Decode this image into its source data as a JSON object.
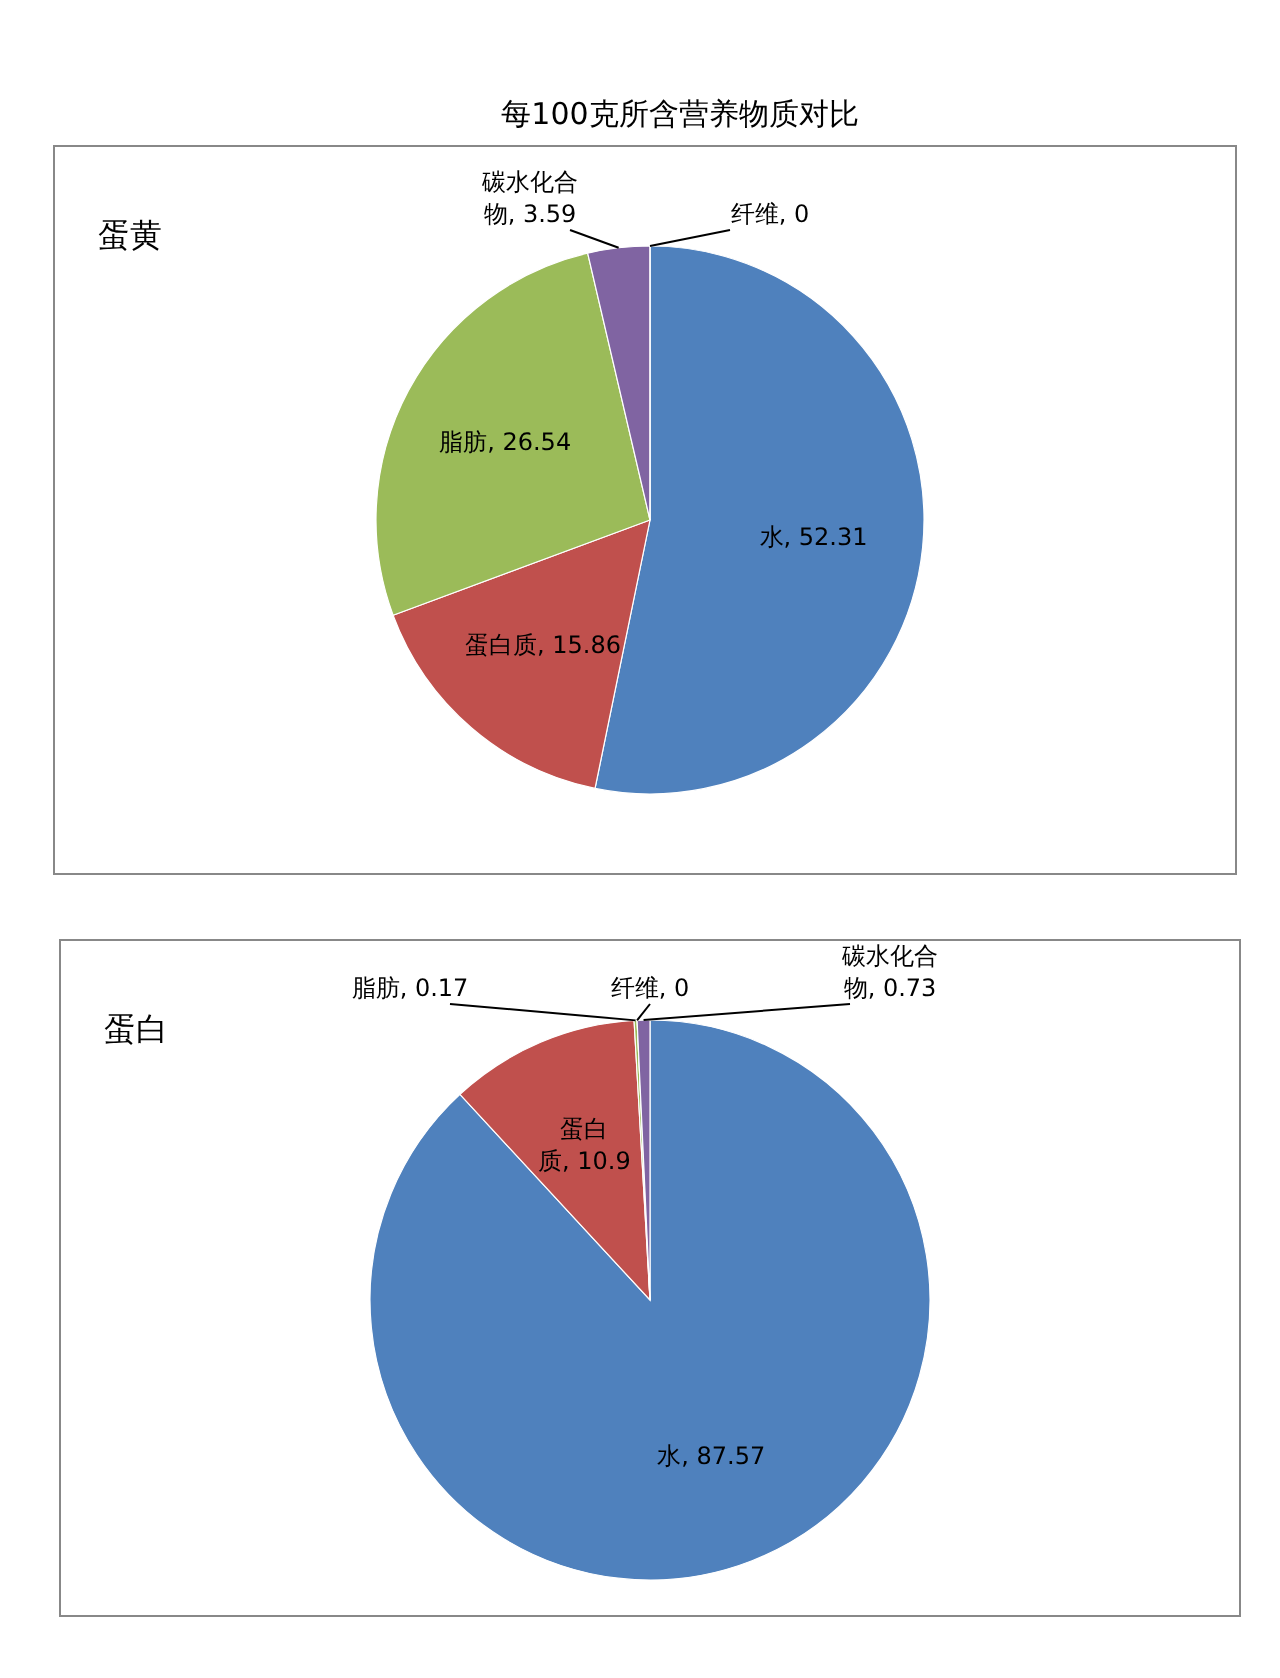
{
  "chart_data": [
    {
      "type": "pie",
      "title": "每100克所含营养物质对比",
      "subtitle": "蛋黄",
      "categories": [
        null,
        null,
        null,
        null,
        null
      ],
      "values": [
        52.31,
        15.86,
        26.54,
        3.59,
        0
      ],
      "colors": [
        "#4f81bd",
        "#c0504d",
        "#9bbb59",
        "#8064a2",
        "#4bacc6"
      ],
      "value_labels": [
        "水, 52.31",
        "蛋白质, 15.86",
        "脂肪, 26.54",
        "碳水化合物, 3.59",
        "纤维, 0"
      ]
    },
    {
      "type": "pie",
      "subtitle": "蛋白",
      "categories": [
        null,
        null,
        null,
        null,
        null
      ],
      "values": [
        87.57,
        10.9,
        0.17,
        0,
        0.73
      ],
      "colors": [
        "#4f81bd",
        "#c0504d",
        "#9bbb59",
        "#4bacc6",
        "#8064a2"
      ],
      "value_labels": [
        "水, 87.57",
        "蛋白质, 10.9",
        "脂肪, 0.17",
        "纤维, 0",
        "碳水化合物, 0.73"
      ]
    }
  ]
}
